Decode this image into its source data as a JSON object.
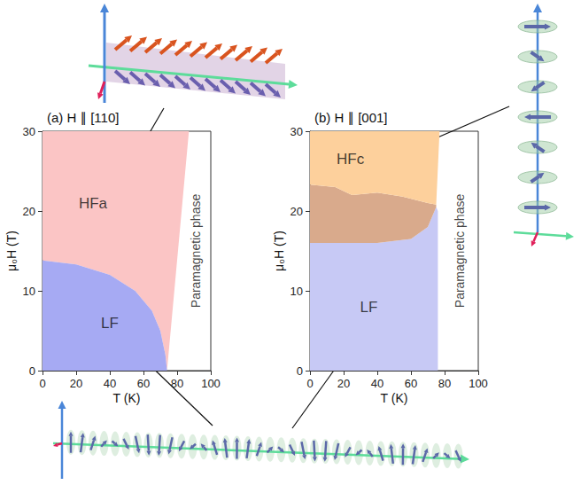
{
  "chart_data": [
    {
      "type": "area",
      "title": "(a) H ∥ [110]",
      "xlabel": "T (K)",
      "ylabel": "μ₀H (T)",
      "xlim": [
        0,
        100
      ],
      "ylim": [
        0,
        30
      ],
      "xticks": [
        0,
        20,
        40,
        60,
        80,
        100
      ],
      "yticks": [
        0,
        10,
        20,
        30
      ],
      "series": [
        {
          "name": "HFa",
          "color": "#fbc5c5",
          "label_at": [
            30,
            21
          ],
          "x": [
            0,
            0,
            87,
            74,
            73,
            70,
            65,
            55,
            40,
            20,
            0
          ],
          "values": [
            13.8,
            30,
            30,
            0,
            2,
            5,
            7.5,
            10,
            12,
            13.3,
            13.8
          ]
        },
        {
          "name": "LF",
          "color": "#a6aaf3",
          "label_at": [
            40,
            6
          ],
          "x": [
            0,
            0,
            20,
            40,
            55,
            65,
            70,
            73,
            74
          ],
          "values": [
            0,
            13.8,
            13.3,
            12,
            10,
            7.5,
            5,
            2,
            0
          ]
        }
      ],
      "annotations": [
        {
          "text": "Paramagnetic phase",
          "x": 91,
          "y": 15
        }
      ]
    },
    {
      "type": "area",
      "title": "(b) H ∥ [001]",
      "xlabel": "T (K)",
      "ylabel": "μ₀H (T)",
      "xlim": [
        0,
        100
      ],
      "ylim": [
        0,
        30
      ],
      "xticks": [
        0,
        20,
        40,
        60,
        80,
        100
      ],
      "yticks": [
        0,
        10,
        20,
        30
      ],
      "series": [
        {
          "name": "LF",
          "color": "#c7c9f5",
          "label_at": [
            35,
            8
          ],
          "x": [
            0,
            0,
            20,
            40,
            60,
            70,
            75,
            76,
            76
          ],
          "values": [
            0,
            16,
            16,
            16,
            16.5,
            18,
            20.5,
            20,
            0
          ]
        },
        {
          "color": "#d9aa8c",
          "x": [
            0,
            15,
            25,
            40,
            55,
            70,
            75,
            75,
            70,
            60,
            40,
            20,
            0
          ],
          "values": [
            23.3,
            23,
            22,
            22.3,
            21.8,
            21,
            20.8,
            20.5,
            18,
            16.5,
            16,
            16,
            16
          ]
        },
        {
          "name": "HFc",
          "color": "#fdd09c",
          "label_at": [
            24,
            26.5
          ],
          "x": [
            0,
            0,
            77,
            75,
            70,
            55,
            40,
            25,
            15,
            0
          ],
          "values": [
            23.3,
            30,
            30,
            20.8,
            21,
            21.8,
            22.3,
            22,
            23,
            23.3
          ]
        }
      ],
      "annotations": [
        {
          "text": "Paramagnetic phase",
          "x": 89,
          "y": 15
        }
      ]
    }
  ]
}
